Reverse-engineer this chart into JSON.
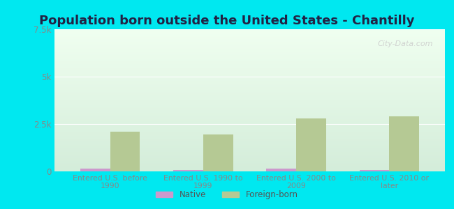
{
  "title": "Population born outside the United States - Chantilly",
  "categories": [
    "Entered U.S. before\n1990",
    "Entered U.S. 1990 to\n1999",
    "Entered U.S. 2000 to\n2009",
    "Entered U.S. 2010 or\nlater"
  ],
  "native_values": [
    150,
    80,
    150,
    60
  ],
  "foreign_values": [
    2100,
    1950,
    2800,
    2900
  ],
  "native_color": "#cc99cc",
  "foreign_color": "#b5c994",
  "background_outer": "#00e8f0",
  "background_inner_top": "#f0fff0",
  "background_inner_bottom": "#d4edda",
  "ylim": [
    0,
    7500
  ],
  "yticks": [
    0,
    2500,
    5000,
    7500
  ],
  "ytick_labels": [
    "0",
    "2.5k",
    "5k",
    "7.5k"
  ],
  "title_fontsize": 13,
  "tick_label_color": "#888888",
  "axis_label_color": "#888888",
  "watermark": "City-Data.com",
  "bar_width": 0.32,
  "title_color": "#222244",
  "legend_label_color": "#555555"
}
